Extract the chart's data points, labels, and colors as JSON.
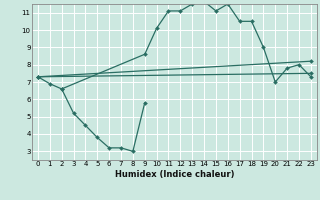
{
  "background_color": "#cce8e0",
  "grid_color": "#ffffff",
  "line_color": "#2a6e63",
  "marker": "D",
  "markersize": 2.0,
  "linewidth": 0.9,
  "xlabel": "Humidex (Indice chaleur)",
  "xlabel_fontsize": 6.0,
  "xlim": [
    -0.5,
    23.5
  ],
  "ylim": [
    2.5,
    11.5
  ],
  "xticks": [
    0,
    1,
    2,
    3,
    4,
    5,
    6,
    7,
    8,
    9,
    10,
    11,
    12,
    13,
    14,
    15,
    16,
    17,
    18,
    19,
    20,
    21,
    22,
    23
  ],
  "yticks": [
    3,
    4,
    5,
    6,
    7,
    8,
    9,
    10,
    11
  ],
  "tick_fontsize": 5.0,
  "lines": [
    {
      "x": [
        0,
        1,
        2,
        9,
        10,
        11,
        12,
        13,
        14,
        15,
        16,
        17,
        18,
        19,
        20,
        21,
        22,
        23
      ],
      "y": [
        7.3,
        6.9,
        6.6,
        8.6,
        10.1,
        11.1,
        11.1,
        11.5,
        11.65,
        11.1,
        11.5,
        10.5,
        10.5,
        9.0,
        7.0,
        7.8,
        8.0,
        7.3
      ]
    },
    {
      "x": [
        0,
        23
      ],
      "y": [
        7.3,
        8.2
      ]
    },
    {
      "x": [
        0,
        23
      ],
      "y": [
        7.3,
        7.5
      ]
    },
    {
      "x": [
        2,
        3,
        4,
        5,
        6,
        7,
        8,
        9
      ],
      "y": [
        6.6,
        5.2,
        4.5,
        3.8,
        3.2,
        3.2,
        3.0,
        5.8
      ]
    }
  ]
}
